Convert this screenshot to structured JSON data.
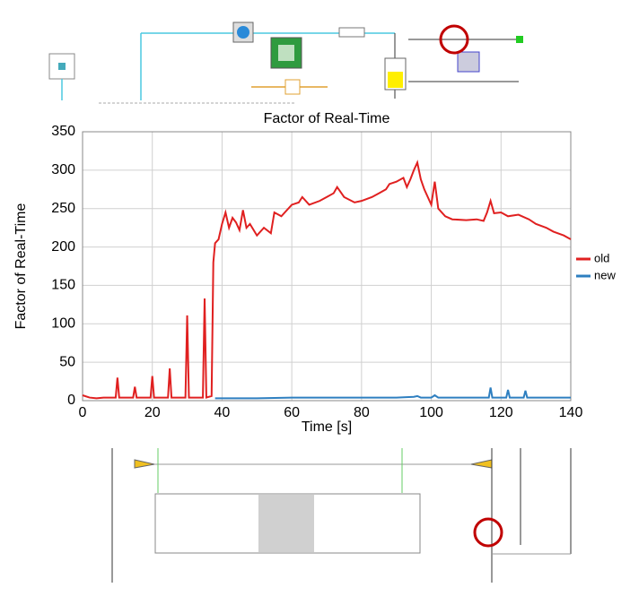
{
  "chart_data": {
    "type": "line",
    "title": "Factor of Real-Time",
    "x_label": "Time [s]",
    "y_label": "Factor of Real-Time",
    "xlim": [
      0,
      140
    ],
    "xticks": [
      0,
      20,
      40,
      60,
      80,
      100,
      120,
      140
    ],
    "ylim": [
      0,
      350
    ],
    "yticks": [
      0,
      50,
      100,
      150,
      200,
      250,
      300,
      350
    ],
    "grid": true,
    "legend": "right",
    "series": [
      {
        "name": "old",
        "color": "#e02020",
        "x": [
          0,
          2,
          4,
          6,
          8,
          9.5,
          10,
          10.5,
          14.5,
          15,
          15.5,
          19.5,
          20,
          20.5,
          24.5,
          25,
          25.5,
          29.5,
          30,
          30.5,
          34.5,
          35,
          35.5,
          37,
          37.5,
          38,
          39,
          40,
          41,
          42,
          43,
          44,
          45,
          46,
          47,
          48,
          50,
          52,
          54,
          55,
          57,
          60,
          62,
          63,
          65,
          68,
          70,
          72,
          73,
          75,
          78,
          80,
          83,
          85,
          87,
          88,
          90,
          92,
          93,
          94,
          95,
          96,
          97,
          98,
          100,
          101,
          102,
          104,
          106,
          110,
          113,
          115,
          116,
          117,
          118,
          120,
          122,
          125,
          128,
          130,
          133,
          135,
          138,
          140
        ],
        "values": [
          7,
          4,
          3,
          4,
          4,
          4,
          30,
          4,
          4,
          18,
          4,
          4,
          32,
          4,
          4,
          42,
          4,
          4,
          111,
          4,
          4,
          133,
          4,
          6,
          180,
          205,
          210,
          230,
          245,
          225,
          238,
          232,
          222,
          248,
          225,
          230,
          215,
          225,
          218,
          245,
          240,
          255,
          258,
          265,
          255,
          260,
          265,
          270,
          278,
          265,
          258,
          260,
          265,
          270,
          275,
          282,
          285,
          290,
          278,
          288,
          300,
          310,
          288,
          275,
          255,
          285,
          250,
          240,
          236,
          235,
          236,
          234,
          245,
          260,
          244,
          245,
          240,
          242,
          236,
          230,
          225,
          220,
          215,
          210
        ]
      },
      {
        "name": "new",
        "color": "#2e7fc0",
        "x": [
          38,
          45,
          50,
          60,
          70,
          80,
          85,
          90,
          95,
          96,
          97,
          100,
          101,
          102,
          110,
          116.5,
          117,
          117.5,
          121.5,
          122,
          122.5,
          126.5,
          127,
          127.5,
          135,
          140
        ],
        "values": [
          3,
          3,
          3,
          4,
          4,
          4,
          4,
          4,
          5,
          6,
          4,
          4,
          7,
          4,
          4,
          4,
          17,
          4,
          4,
          14,
          4,
          4,
          13,
          4,
          4,
          4
        ]
      }
    ]
  }
}
